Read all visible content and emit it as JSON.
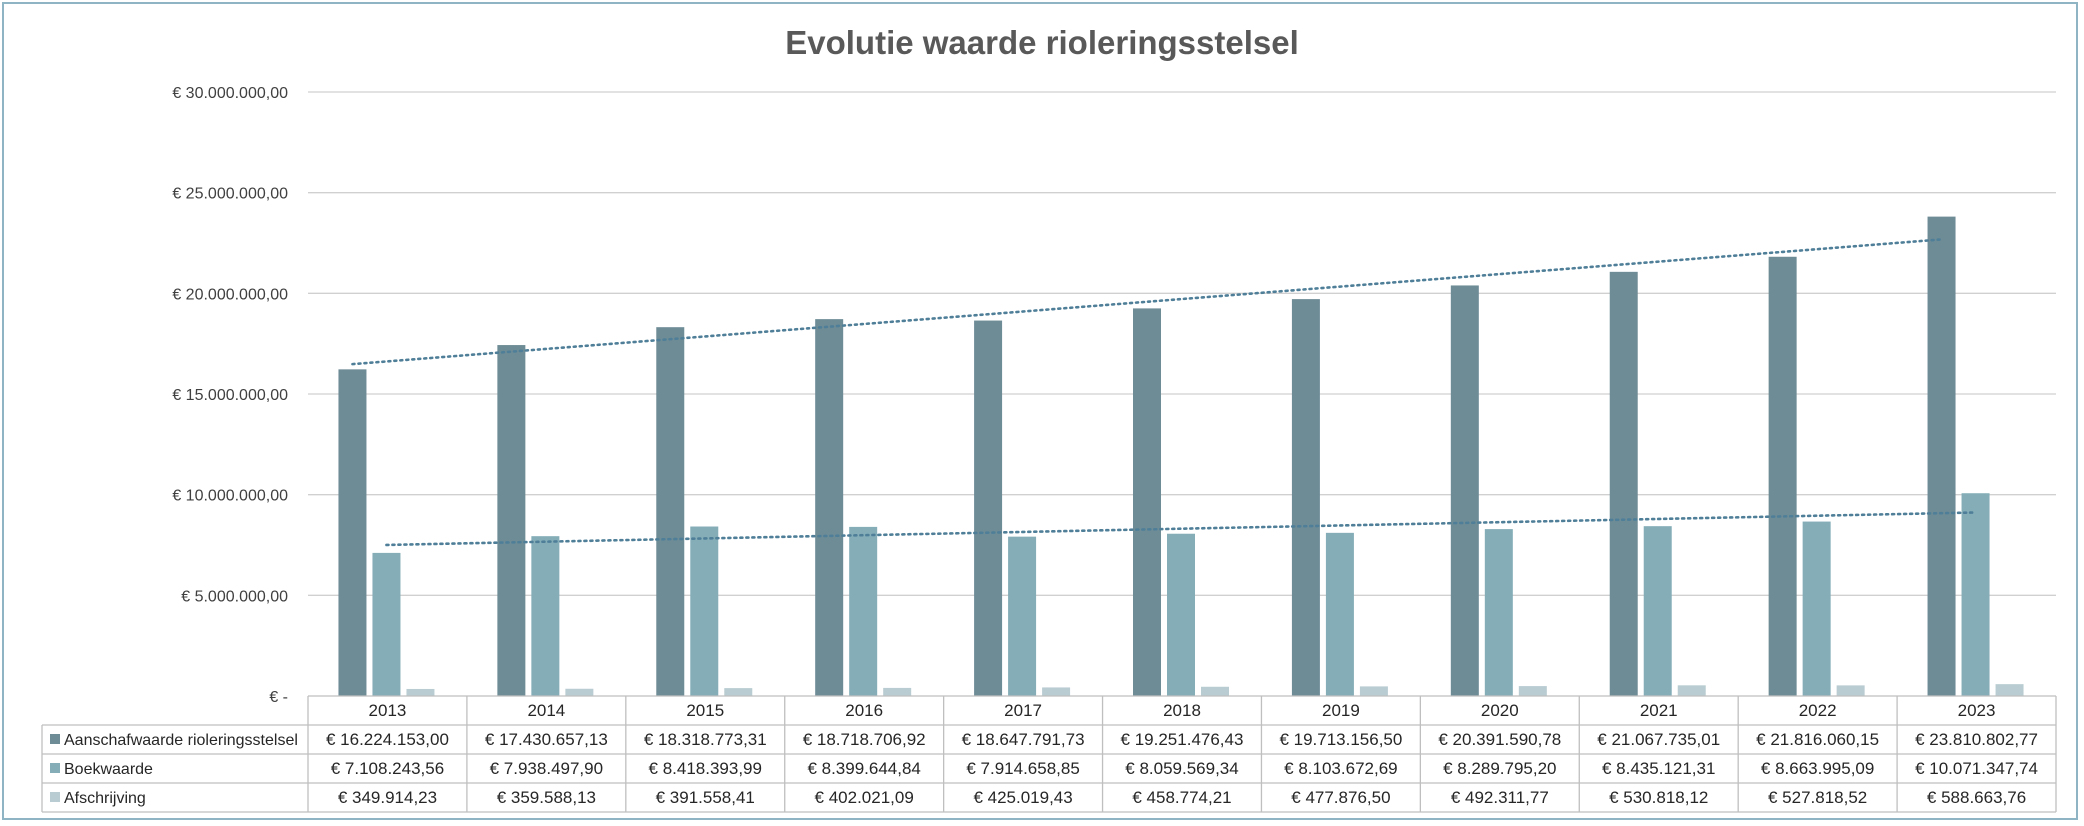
{
  "chart_data": {
    "type": "bar",
    "title": "Evolutie waarde rioleringsstelsel",
    "categories": [
      "2013",
      "2014",
      "2015",
      "2016",
      "2017",
      "2018",
      "2019",
      "2020",
      "2021",
      "2022",
      "2023"
    ],
    "ylim": [
      0,
      30000000
    ],
    "yticks": [
      {
        "value": 0,
        "label": "€ -"
      },
      {
        "value": 5000000,
        "label": "€ 5.000.000,00"
      },
      {
        "value": 10000000,
        "label": "€ 10.000.000,00"
      },
      {
        "value": 15000000,
        "label": "€ 15.000.000,00"
      },
      {
        "value": 20000000,
        "label": "€ 20.000.000,00"
      },
      {
        "value": 25000000,
        "label": "€ 25.000.000,00"
      },
      {
        "value": 30000000,
        "label": "€ 30.000.000,00"
      }
    ],
    "grid": true,
    "legend": "data-table",
    "trendlines": "linear (dotted) for Aanschafwaarde rioleringsstelsel and Boekwaarde",
    "series": [
      {
        "name": "Aanschafwaarde rioleringsstelsel",
        "color": "#6e8c96",
        "values": [
          16224153.0,
          17430657.13,
          18318773.31,
          18718706.92,
          18647791.73,
          19251476.43,
          19713156.5,
          20391590.78,
          21067735.01,
          21816060.15,
          23810802.77
        ],
        "labels": [
          "€ 16.224.153,00",
          "€ 17.430.657,13",
          "€ 18.318.773,31",
          "€ 18.718.706,92",
          "€ 18.647.791,73",
          "€ 19.251.476,43",
          "€ 19.713.156,50",
          "€ 20.391.590,78",
          "€ 21.067.735,01",
          "€ 21.816.060,15",
          "€ 23.810.802,77"
        ]
      },
      {
        "name": "Boekwaarde",
        "color": "#84adb8",
        "values": [
          7108243.56,
          7938497.9,
          8418393.99,
          8399644.84,
          7914658.85,
          8059569.34,
          8103672.69,
          8289795.2,
          8435121.31,
          8663995.09,
          10071347.74
        ],
        "labels": [
          "€ 7.108.243,56",
          "€ 7.938.497,90",
          "€ 8.418.393,99",
          "€ 8.399.644,84",
          "€ 7.914.658,85",
          "€ 8.059.569,34",
          "€ 8.103.672,69",
          "€ 8.289.795,20",
          "€ 8.435.121,31",
          "€ 8.663.995,09",
          "€ 10.071.347,74"
        ]
      },
      {
        "name": "Afschrijving",
        "color": "#b9ccd2",
        "values": [
          349914.23,
          359588.13,
          391558.41,
          402021.09,
          425019.43,
          458774.21,
          477876.5,
          492311.77,
          530818.12,
          527818.52,
          588663.76
        ],
        "labels": [
          "€ 349.914,23",
          "€ 359.588,13",
          "€ 391.558,41",
          "€ 402.021,09",
          "€ 425.019,43",
          "€ 458.774,21",
          "€ 477.876,50",
          "€ 492.311,77",
          "€ 530.818,12",
          "€ 527.818,52",
          "€ 588.663,76"
        ]
      }
    ]
  }
}
